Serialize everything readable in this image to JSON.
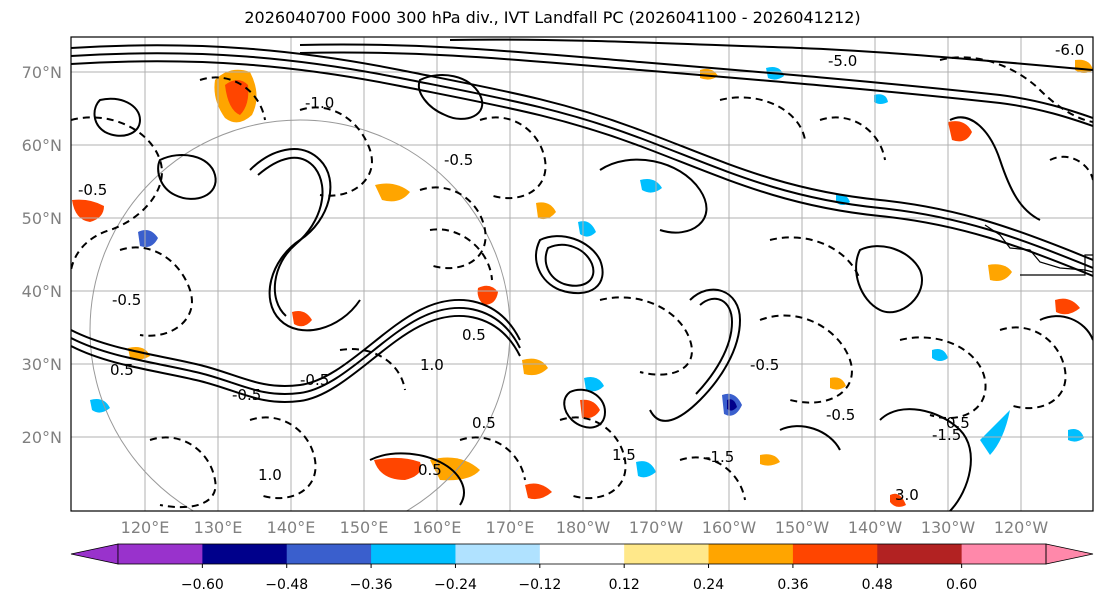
{
  "title": "2026040700 F000 300 hPa div., IVT Landfall PC (2026041100 - 2026041212)",
  "lat_labels": [
    "70°N",
    "60°N",
    "50°N",
    "40°N",
    "30°N",
    "20°N"
  ],
  "lon_labels": [
    "120°E",
    "130°E",
    "140°E",
    "150°E",
    "160°E",
    "170°E",
    "180°W",
    "170°W",
    "160°W",
    "150°W",
    "140°W",
    "130°W",
    "120°W"
  ],
  "contour_labels": [
    "-1.0",
    "-0.5",
    "-0.5",
    "0.5",
    "0.5",
    "1.0",
    "-0.5",
    "-0.5",
    "0.5",
    "1.5",
    "-1.5",
    "-0.5",
    "-0.5",
    "-5.0",
    "-6.0",
    "-0.5",
    "0.5",
    "1.0",
    "-1.5",
    "0.5",
    "3.0"
  ],
  "colorbar": {
    "colors": [
      "#9932cc",
      "#00008b",
      "#3a5fcd",
      "#00bfff",
      "#b0e2ff",
      "#ffffff",
      "#ffe88a",
      "#ffa500",
      "#ff4500",
      "#b22222",
      "#ff88aa"
    ],
    "tick_labels": [
      "−0.60",
      "−0.48",
      "−0.36",
      "−0.24",
      "−0.12",
      "0.12",
      "0.24",
      "0.36",
      "0.48",
      "0.60"
    ]
  }
}
